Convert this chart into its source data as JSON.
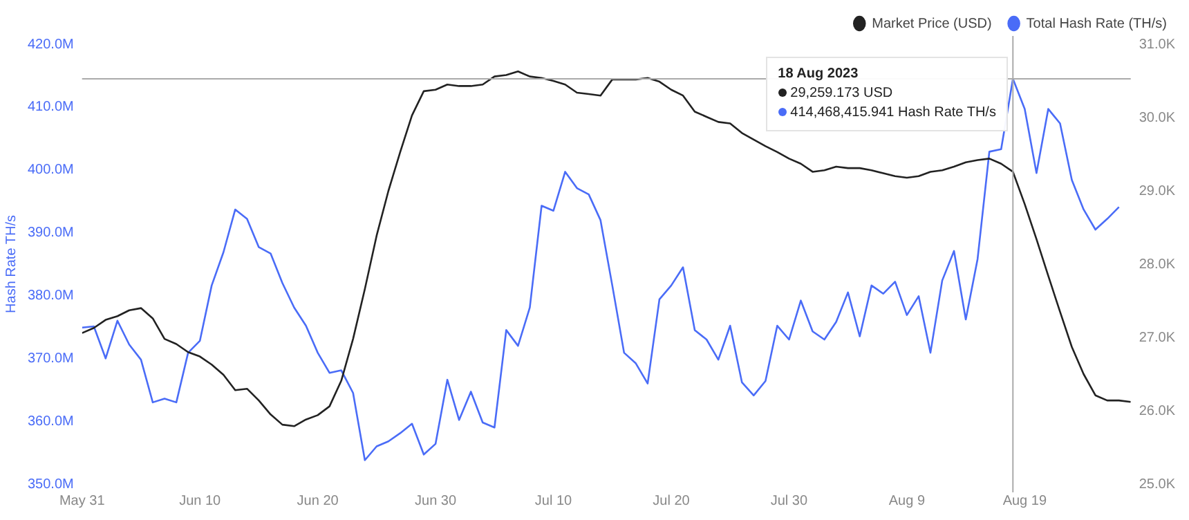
{
  "chart_data": {
    "type": "line",
    "ylabel": "Hash Rate TH/s",
    "legend": "top right",
    "grid": false,
    "marker": "none",
    "line_style": "solid",
    "x": [
      "2023-05-31",
      "2023-06-01",
      "2023-06-02",
      "2023-06-03",
      "2023-06-04",
      "2023-06-05",
      "2023-06-06",
      "2023-06-07",
      "2023-06-08",
      "2023-06-09",
      "2023-06-10",
      "2023-06-11",
      "2023-06-12",
      "2023-06-13",
      "2023-06-14",
      "2023-06-15",
      "2023-06-16",
      "2023-06-17",
      "2023-06-18",
      "2023-06-19",
      "2023-06-20",
      "2023-06-21",
      "2023-06-22",
      "2023-06-23",
      "2023-06-24",
      "2023-06-25",
      "2023-06-26",
      "2023-06-27",
      "2023-06-28",
      "2023-06-29",
      "2023-06-30",
      "2023-07-01",
      "2023-07-02",
      "2023-07-03",
      "2023-07-04",
      "2023-07-05",
      "2023-07-06",
      "2023-07-07",
      "2023-07-08",
      "2023-07-09",
      "2023-07-10",
      "2023-07-11",
      "2023-07-12",
      "2023-07-13",
      "2023-07-14",
      "2023-07-15",
      "2023-07-16",
      "2023-07-17",
      "2023-07-18",
      "2023-07-19",
      "2023-07-20",
      "2023-07-21",
      "2023-07-22",
      "2023-07-23",
      "2023-07-24",
      "2023-07-25",
      "2023-07-26",
      "2023-07-27",
      "2023-07-28",
      "2023-07-29",
      "2023-07-30",
      "2023-07-31",
      "2023-08-01",
      "2023-08-02",
      "2023-08-03",
      "2023-08-04",
      "2023-08-05",
      "2023-08-06",
      "2023-08-07",
      "2023-08-08",
      "2023-08-09",
      "2023-08-10",
      "2023-08-11",
      "2023-08-12",
      "2023-08-13",
      "2023-08-14",
      "2023-08-15",
      "2023-08-16",
      "2023-08-17",
      "2023-08-18",
      "2023-08-19",
      "2023-08-20",
      "2023-08-21",
      "2023-08-22",
      "2023-08-23",
      "2023-08-24",
      "2023-08-25",
      "2023-08-26",
      "2023-08-27",
      "2023-08-28"
    ],
    "series": [
      {
        "name": "Market Price (USD)",
        "color": "#222222",
        "axis": "y2",
        "values": [
          27.06,
          27.13,
          27.24,
          27.29,
          27.37,
          27.4,
          27.26,
          26.98,
          26.91,
          26.8,
          26.74,
          26.63,
          26.49,
          26.28,
          26.3,
          26.14,
          25.95,
          25.81,
          25.79,
          25.88,
          25.94,
          26.06,
          26.41,
          26.98,
          27.66,
          28.39,
          29.0,
          29.53,
          30.03,
          30.36,
          30.38,
          30.45,
          30.43,
          30.43,
          30.45,
          30.56,
          30.58,
          30.63,
          30.56,
          30.54,
          30.5,
          30.45,
          30.34,
          30.32,
          30.3,
          30.52,
          30.52,
          30.52,
          30.54,
          30.49,
          30.38,
          30.3,
          30.08,
          30.01,
          29.94,
          29.92,
          29.79,
          29.7,
          29.61,
          29.53,
          29.44,
          29.37,
          29.26,
          29.28,
          29.33,
          29.31,
          29.31,
          29.28,
          29.24,
          29.2,
          29.18,
          29.2,
          29.26,
          29.28,
          29.33,
          29.39,
          29.42,
          29.44,
          29.37,
          29.26,
          28.82,
          28.34,
          27.84,
          27.35,
          26.87,
          26.5,
          26.21,
          26.14,
          26.14,
          26.12
        ]
      },
      {
        "name": "Total Hash Rate (TH/s)",
        "color": "#4a6cf7",
        "values": [
          374.9,
          375.1,
          370.0,
          376.0,
          372.2,
          369.8,
          363.0,
          363.6,
          363.0,
          370.9,
          372.8,
          381.6,
          386.9,
          393.7,
          392.2,
          387.7,
          386.7,
          382.0,
          378.1,
          375.2,
          370.9,
          367.7,
          368.1,
          364.5,
          353.8,
          356.0,
          356.8,
          358.1,
          359.6,
          354.7,
          356.4,
          366.6,
          360.2,
          364.7,
          359.8,
          359.0,
          374.5,
          372.0,
          378.1,
          394.3,
          393.5,
          399.7,
          397.1,
          396.1,
          392.0,
          381.6,
          370.9,
          369.2,
          366.0,
          379.4,
          381.6,
          384.5,
          374.5,
          373.0,
          369.8,
          375.2,
          366.2,
          364.1,
          366.4,
          375.2,
          373.0,
          379.2,
          374.3,
          373.0,
          375.8,
          380.5,
          373.5,
          381.6,
          380.3,
          382.2,
          376.9,
          379.9,
          370.9,
          382.4,
          387.1,
          376.2,
          385.8,
          402.9,
          403.3,
          414.5,
          409.7,
          399.5,
          409.7,
          407.4,
          398.4,
          393.7,
          390.5,
          392.2,
          394.1,
          null
        ]
      }
    ],
    "xlim": [
      "2023-05-31",
      "2023-08-28"
    ],
    "xticks": [
      {
        "value": "2023-05-31",
        "label": "May 31"
      },
      {
        "value": "2023-06-10",
        "label": "Jun 10"
      },
      {
        "value": "2023-06-20",
        "label": "Jun 20"
      },
      {
        "value": "2023-06-30",
        "label": "Jun 30"
      },
      {
        "value": "2023-07-10",
        "label": "Jul 10"
      },
      {
        "value": "2023-07-20",
        "label": "Jul 20"
      },
      {
        "value": "2023-07-30",
        "label": "Jul 30"
      },
      {
        "value": "2023-08-09",
        "label": "Aug 9"
      },
      {
        "value": "2023-08-19",
        "label": "Aug 19"
      }
    ],
    "ylim": [
      350,
      420
    ],
    "yticks": [
      {
        "value": 350,
        "label": "350.0M"
      },
      {
        "value": 360,
        "label": "360.0M"
      },
      {
        "value": 370,
        "label": "370.0M"
      },
      {
        "value": 380,
        "label": "380.0M"
      },
      {
        "value": 390,
        "label": "390.0M"
      },
      {
        "value": 400,
        "label": "400.0M"
      },
      {
        "value": 410,
        "label": "410.0M"
      },
      {
        "value": 420,
        "label": "420.0M"
      }
    ],
    "y2lim": [
      25,
      31
    ],
    "y2ticks": [
      {
        "value": 25,
        "label": "25.0K"
      },
      {
        "value": 26,
        "label": "26.0K"
      },
      {
        "value": 27,
        "label": "27.0K"
      },
      {
        "value": 28,
        "label": "28.0K"
      },
      {
        "value": 29,
        "label": "29.0K"
      },
      {
        "value": 30,
        "label": "30.0K"
      },
      {
        "value": 31,
        "label": "31.0K"
      }
    ],
    "ref_lines": [
      {
        "axis": "x",
        "value": "2023-08-18",
        "color": "#aaaaaa"
      },
      {
        "axis": "y",
        "value": 414.5,
        "color": "#aaaaaa"
      }
    ],
    "annotations": [
      "18 Aug 2023",
      "29,259.173 USD",
      "414,468,415.941 Hash Rate TH/s"
    ]
  }
}
